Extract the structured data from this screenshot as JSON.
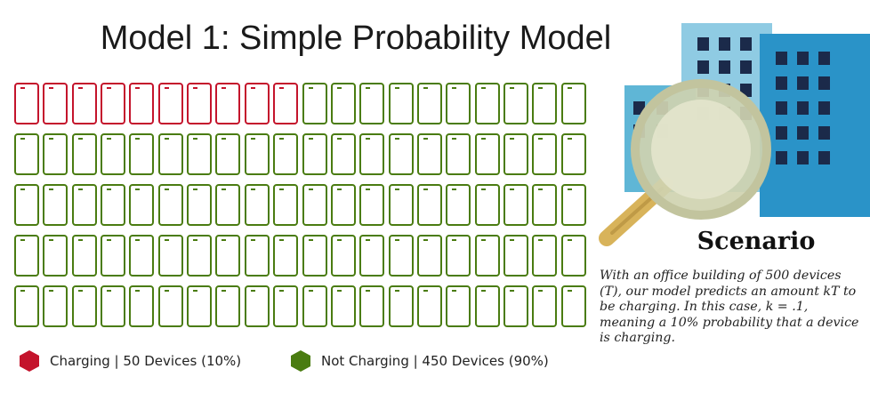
{
  "title": "Model 1: Simple Probability Model",
  "grid": {
    "rows": 5,
    "columns": 20,
    "charging_count": 10,
    "total_count": 100
  },
  "legend": {
    "charging": {
      "label": "Charging | 50 Devices (10%)",
      "color": "#c4142c"
    },
    "not_charging": {
      "label": "Not Charging | 450 Devices (90%)",
      "color": "#4a7c11"
    }
  },
  "scenario": {
    "heading": "Scenario",
    "text": "With an office building of 500 devices (T), our model predicts an amount kT to be charging. In this case, k = .1, meaning a 10% probability that a device is charging."
  },
  "illustration": {
    "icons": [
      "office-building-icon",
      "magnifying-glass-icon"
    ],
    "colors": {
      "building_light": "#5fb6d6",
      "building_dark": "#2a93c8",
      "window": "#1b2a4a",
      "lens": "#cfd2b0",
      "handle": "#d8b35a"
    }
  }
}
